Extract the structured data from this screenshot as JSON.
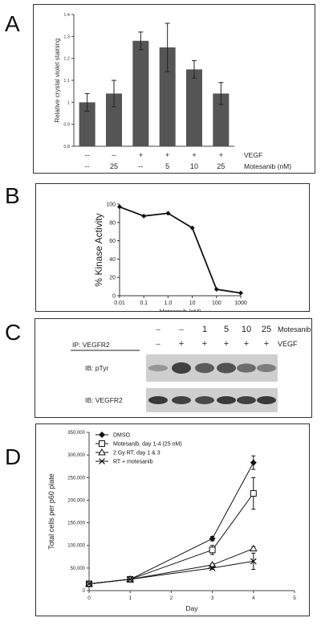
{
  "panels": {
    "A": {
      "letter": "A",
      "chart_data": {
        "type": "bar",
        "ylabel": "Relative crystal violet staining",
        "ylim": [
          0.8,
          1.4
        ],
        "yticks": [
          "0.8",
          "0.9",
          "1",
          "1.1",
          "1.2",
          "1.3",
          "1.4"
        ],
        "values": [
          1.0,
          1.04,
          1.28,
          1.25,
          1.15,
          1.04
        ],
        "errors": [
          0.04,
          0.06,
          0.04,
          0.11,
          0.04,
          0.05
        ],
        "bar_color": "#555555",
        "conditions": {
          "vegf": [
            "--",
            "--",
            "+",
            "+",
            "+",
            "+"
          ],
          "motesanib": [
            "--",
            "25",
            "--",
            "5",
            "10",
            "25"
          ]
        },
        "row_labels": {
          "vegf": "VEGF",
          "motesanib": "Motesanib (nM)"
        }
      }
    },
    "B": {
      "letter": "B",
      "chart_data": {
        "type": "line",
        "xscale": "log",
        "xlabel": "Motesanib (nM)",
        "ylabel": "% Kinase Activity",
        "xlim": [
          0.01,
          1000
        ],
        "ylim": [
          0,
          100
        ],
        "xticks": [
          0.01,
          0.1,
          1.0,
          10,
          100,
          1000
        ],
        "xtick_labels": [
          "0.01",
          "0.1",
          "1.0",
          "10",
          "100",
          "1000"
        ],
        "yticks": [
          "0",
          "20",
          "40",
          "60",
          "80",
          "100"
        ],
        "x": [
          0.01,
          0.1,
          1.0,
          10,
          100,
          1000
        ],
        "y": [
          97,
          87,
          90,
          74,
          7,
          3
        ]
      }
    },
    "C": {
      "letter": "C",
      "motesanib_values": [
        "--",
        "--",
        "1",
        "5",
        "10",
        "25"
      ],
      "motesanib_label": "Motesanib (nM)",
      "vegf_values": [
        "--",
        "+",
        "+",
        "+",
        "+",
        "+"
      ],
      "vegf_label": "VEGF",
      "ip_label": "IP: VEGFR2",
      "blots": [
        {
          "label": "IB:  pTyr",
          "intensity": [
            0.35,
            0.85,
            0.7,
            0.75,
            0.6,
            0.5
          ]
        },
        {
          "label": "IB:  VEGFR2",
          "intensity": [
            0.9,
            0.85,
            0.8,
            0.9,
            0.85,
            0.9
          ]
        }
      ]
    },
    "D": {
      "letter": "D",
      "chart_data": {
        "type": "line",
        "xlabel": "Day",
        "ylabel": "Total cells per p60 plate",
        "xlim": [
          0,
          5
        ],
        "ylim": [
          0,
          350000
        ],
        "xticks": [
          "0",
          "1",
          "2",
          "3",
          "4",
          "5"
        ],
        "yticks": [
          "0",
          "50,000",
          "100,000",
          "150,000",
          "200,000",
          "250,000",
          "300,000",
          "350,000"
        ],
        "x": [
          0,
          1,
          3,
          4
        ],
        "series": [
          {
            "name": "DMSO",
            "marker": "diamond",
            "values": [
              15000,
              25000,
              115000,
              283000
            ],
            "errors": [
              0,
              0,
              5000,
              15000
            ]
          },
          {
            "name": "Motesanib, day 1-4 (25 nM)",
            "marker": "square",
            "values": [
              15000,
              25000,
              90000,
              215000
            ],
            "errors": [
              0,
              0,
              10000,
              35000
            ]
          },
          {
            "name": "2 Gy RT, day 1 & 3",
            "marker": "triangle",
            "values": [
              15000,
              25000,
              57000,
              93000
            ],
            "errors": [
              0,
              0,
              3000,
              4000
            ]
          },
          {
            "name": "RT + motesanib",
            "marker": "x",
            "values": [
              15000,
              25000,
              50000,
              65000
            ],
            "errors": [
              0,
              0,
              3000,
              18000
            ]
          }
        ]
      }
    }
  }
}
